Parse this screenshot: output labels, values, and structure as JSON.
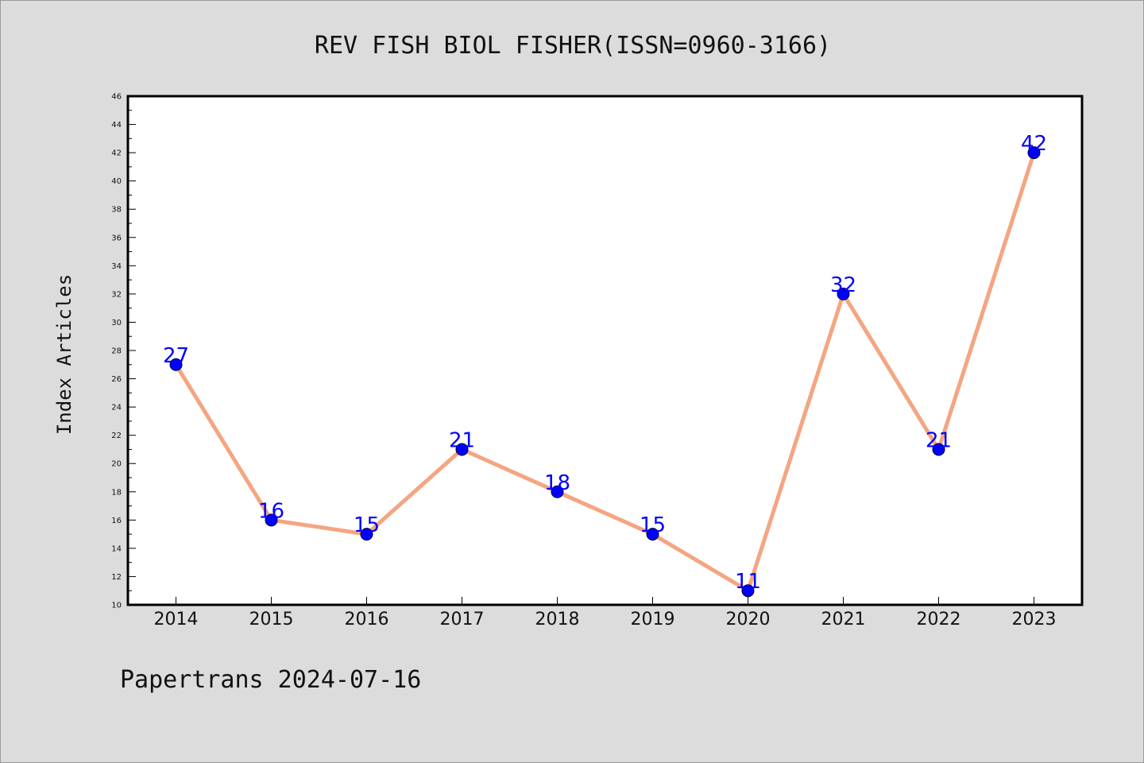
{
  "chart_data": {
    "type": "line",
    "title": "REV FISH BIOL FISHER(ISSN=0960-3166)",
    "xlabel": "",
    "ylabel": "Index Articles",
    "footer": "Papertrans 2024-07-16",
    "categories": [
      "2014",
      "2015",
      "2016",
      "2017",
      "2018",
      "2019",
      "2020",
      "2021",
      "2022",
      "2023"
    ],
    "values": [
      27,
      16,
      15,
      21,
      18,
      15,
      11,
      32,
      21,
      42
    ],
    "data_labels": [
      "27",
      "16",
      "15",
      "21",
      "18",
      "15",
      "11",
      "32",
      "21",
      "42"
    ],
    "ylim": [
      10,
      46
    ],
    "yticks": [
      "10",
      "12",
      "14",
      "16",
      "18",
      "20",
      "22",
      "24",
      "26",
      "28",
      "30",
      "32",
      "34",
      "36",
      "38",
      "40",
      "42",
      "44",
      "46"
    ],
    "grid": false,
    "colors": {
      "line": "#f4a582",
      "marker": "#0000ff",
      "marker_edge": "#000033",
      "data_label": "#0000ff",
      "plot_bg": "#ffffff",
      "page_bg": "#dcdcdc"
    }
  }
}
